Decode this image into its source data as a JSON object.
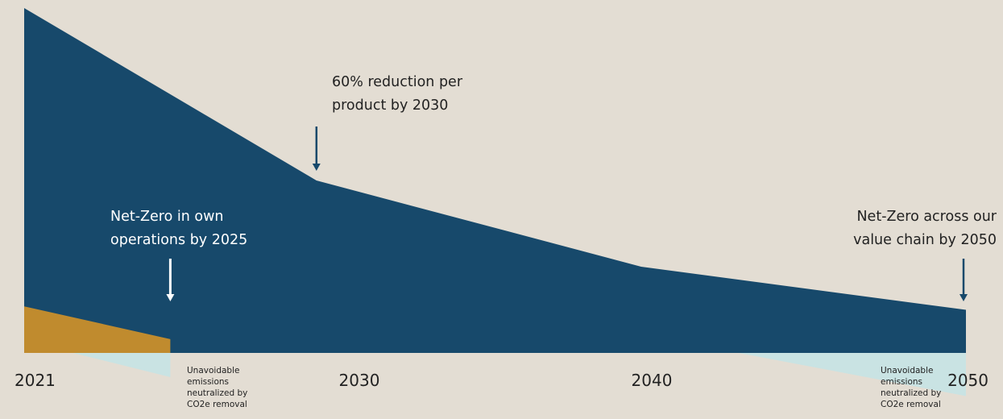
{
  "chart_data": {
    "type": "area",
    "x": [
      2021,
      2030,
      2040,
      2050
    ],
    "xlim": [
      2021,
      2050
    ],
    "ylim": [
      0,
      100
    ],
    "tick_labels": [
      "2021",
      "2030",
      "2040",
      "2050"
    ],
    "grid": false,
    "legend": "none",
    "series": [
      {
        "key": "total",
        "x": [
          2021,
          2030,
          2040,
          2050
        ],
        "values": [
          100,
          50,
          25,
          12.5
        ],
        "color": "#17496b"
      },
      {
        "key": "own_ops",
        "x": [
          2021,
          2025.5
        ],
        "values": [
          13.5,
          4
        ],
        "color": "#c08b2e"
      },
      {
        "key": "removal_left",
        "x": [
          2022.5,
          2025.5
        ],
        "values": [
          0,
          -7
        ],
        "color": "#c9e3e3"
      },
      {
        "key": "removal_right",
        "x": [
          2043,
          2050
        ],
        "values": [
          0,
          -12.5
        ],
        "color": "#c9e3e3"
      }
    ],
    "annotations": [
      {
        "key": "a2030",
        "lines": [
          "60% reduction per",
          "product by 2030"
        ],
        "x": 2030,
        "arrow_color": "#17496b"
      },
      {
        "key": "a2025",
        "lines": [
          "Net-Zero in own",
          "operations by 2025"
        ],
        "x": 2025.5,
        "arrow_color": "#ffffff"
      },
      {
        "key": "a2050",
        "lines": [
          "Net-Zero across our",
          "value chain by 2050"
        ],
        "x": 2050,
        "arrow_color": "#17496b"
      }
    ],
    "notes": [
      {
        "key": "n1",
        "lines": [
          "Unavoidable",
          "emissions",
          "neutralized by",
          "CO2e removal"
        ]
      },
      {
        "key": "n2",
        "lines": [
          "Unavoidable",
          "emissions",
          "neutralized by",
          "CO2e removal"
        ]
      }
    ]
  }
}
